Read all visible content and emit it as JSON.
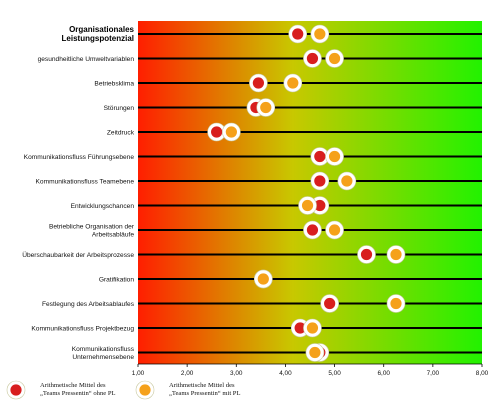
{
  "chart_data": {
    "type": "scatter",
    "title": "",
    "xlabel": "",
    "ylabel": "",
    "xlim": [
      1.0,
      8.0
    ],
    "x_ticks": [
      "1,00",
      "2,00",
      "3,00",
      "4,00",
      "5,00",
      "6,00",
      "7,00",
      "8,00"
    ],
    "grid": false,
    "legend_position": "bottom-left",
    "background": "horizontal gradient red-yellow-green",
    "categories": [
      {
        "label": [
          "Organisationales",
          "Leistungspotenzial"
        ],
        "bold": true
      },
      {
        "label": [
          "gesundheitliche Umweltvariablen"
        ]
      },
      {
        "label": [
          "Betriebsklima"
        ]
      },
      {
        "label": [
          "Störungen"
        ]
      },
      {
        "label": [
          "Zeitdruck"
        ]
      },
      {
        "label": [
          "Kommunikationsfluss Führungsebene"
        ]
      },
      {
        "label": [
          "Kommunikationsfluss Teamebene"
        ]
      },
      {
        "label": [
          "Entwicklungschancen"
        ]
      },
      {
        "label": [
          "Betriebliche Organisation der",
          "Arbeitsabläufe"
        ]
      },
      {
        "label": [
          "Überschaubarkeit der Arbeitsprozesse"
        ]
      },
      {
        "label": [
          "Gratifikation"
        ]
      },
      {
        "label": [
          "Festlegung des Arbeitsablaufes"
        ]
      },
      {
        "label": [
          "Kommunikationsfluss Projektbezug"
        ]
      },
      {
        "label": [
          "Kommunikationsfluss",
          "Unternehmensebene"
        ]
      }
    ],
    "series": [
      {
        "name": "Arithmetische Mittel des „Teams Pressentin“ ohne PL",
        "color": "#d81e1e",
        "values": [
          4.25,
          4.55,
          3.45,
          3.4,
          2.6,
          4.7,
          4.7,
          4.7,
          4.55,
          5.65,
          3.55,
          4.9,
          4.3,
          4.7
        ]
      },
      {
        "name": "Arithmetische Mittel des „Teams Pressentin“ mit PL",
        "color": "#f5a11a",
        "values": [
          4.7,
          5.0,
          4.15,
          3.6,
          2.9,
          5.0,
          5.25,
          4.45,
          5.0,
          6.25,
          3.55,
          6.25,
          4.55,
          4.6
        ]
      }
    ],
    "legend": [
      [
        "Arithmetische Mittel des",
        "„Teams Pressentin“ ohne PL"
      ],
      [
        "Arithmetische Mittel des",
        "„Teams Pressentin“ mit PL"
      ]
    ]
  }
}
